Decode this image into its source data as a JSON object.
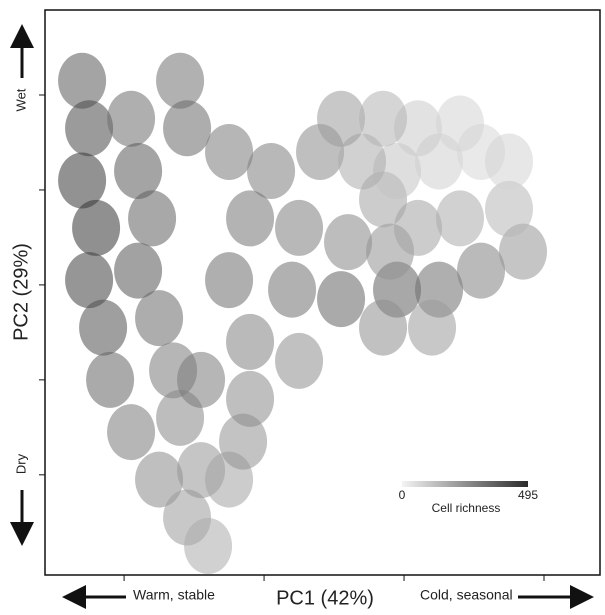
{
  "chart_data": {
    "type": "scatter",
    "x_label": "PC1 (42%)",
    "y_label": "PC2 (29%)",
    "annotations": {
      "left": "Warm, stable",
      "right": "Cold, seasonal",
      "top": "Wet",
      "bottom": "Dry"
    },
    "colorbar": {
      "title": "Cell richness",
      "min": 0,
      "max": 495,
      "colors": [
        "#f4f4f4",
        "#2a2a2a"
      ]
    },
    "xlim": [
      -3.13,
      4.8
    ],
    "xticks": [
      -2,
      0,
      2,
      4
    ],
    "ylim": [
      -6.11,
      5.79
    ],
    "yticks": [
      -4,
      -2,
      0,
      2,
      4
    ],
    "x": [
      -2.6,
      -2.5,
      -2.6,
      -2.4,
      -2.5,
      -2.3,
      -2.2,
      -1.9,
      -1.5,
      -1.1,
      -0.8,
      -1.9,
      -1.8,
      -1.6,
      -1.8,
      -1.5,
      -1.3,
      -1.2,
      -0.9,
      -1.2,
      -1.1,
      -0.5,
      -0.3,
      -0.5,
      0.1,
      0.8,
      -0.2,
      0.5,
      1.2,
      -0.5,
      0.4,
      1.1,
      -0.2,
      0.5,
      -0.2,
      -0.9,
      1.9,
      2.5,
      3.1,
      3.7,
      1.7,
      2.4,
      1.8,
      2.2,
      2.8,
      3.5,
      1.7,
      1.9,
      2.5,
      3.1,
      3.5,
      2.2,
      2.8,
      1.4,
      1.1,
      1.7
    ],
    "y": [
      4.3,
      3.3,
      2.2,
      1.2,
      0.1,
      -0.9,
      -2.0,
      -3.1,
      -4.1,
      -4.9,
      -5.5,
      3.5,
      2.4,
      1.4,
      0.3,
      -0.7,
      -1.8,
      -2.8,
      -3.9,
      4.3,
      3.3,
      -4.1,
      -3.3,
      2.8,
      2.4,
      2.8,
      1.4,
      1.2,
      0.9,
      0.1,
      -0.1,
      -0.3,
      -1.2,
      -1.6,
      -2.4,
      -2.0,
      -0.1,
      -0.1,
      0.3,
      0.7,
      -0.9,
      -0.9,
      0.7,
      1.2,
      1.4,
      1.6,
      1.8,
      2.4,
      2.6,
      2.8,
      2.6,
      3.3,
      3.4,
      2.6,
      3.5,
      3.5
    ],
    "richness": [
      380,
      420,
      460,
      470,
      440,
      400,
      350,
      300,
      260,
      220,
      180,
      330,
      380,
      360,
      390,
      340,
      300,
      270,
      230,
      320,
      340,
      200,
      240,
      300,
      290,
      260,
      310,
      290,
      270,
      330,
      320,
      350,
      280,
      250,
      260,
      300,
      360,
      330,
      280,
      230,
      250,
      220,
      240,
      200,
      180,
      150,
      200,
      120,
      90,
      70,
      80,
      100,
      80,
      180,
      220,
      160
    ]
  }
}
